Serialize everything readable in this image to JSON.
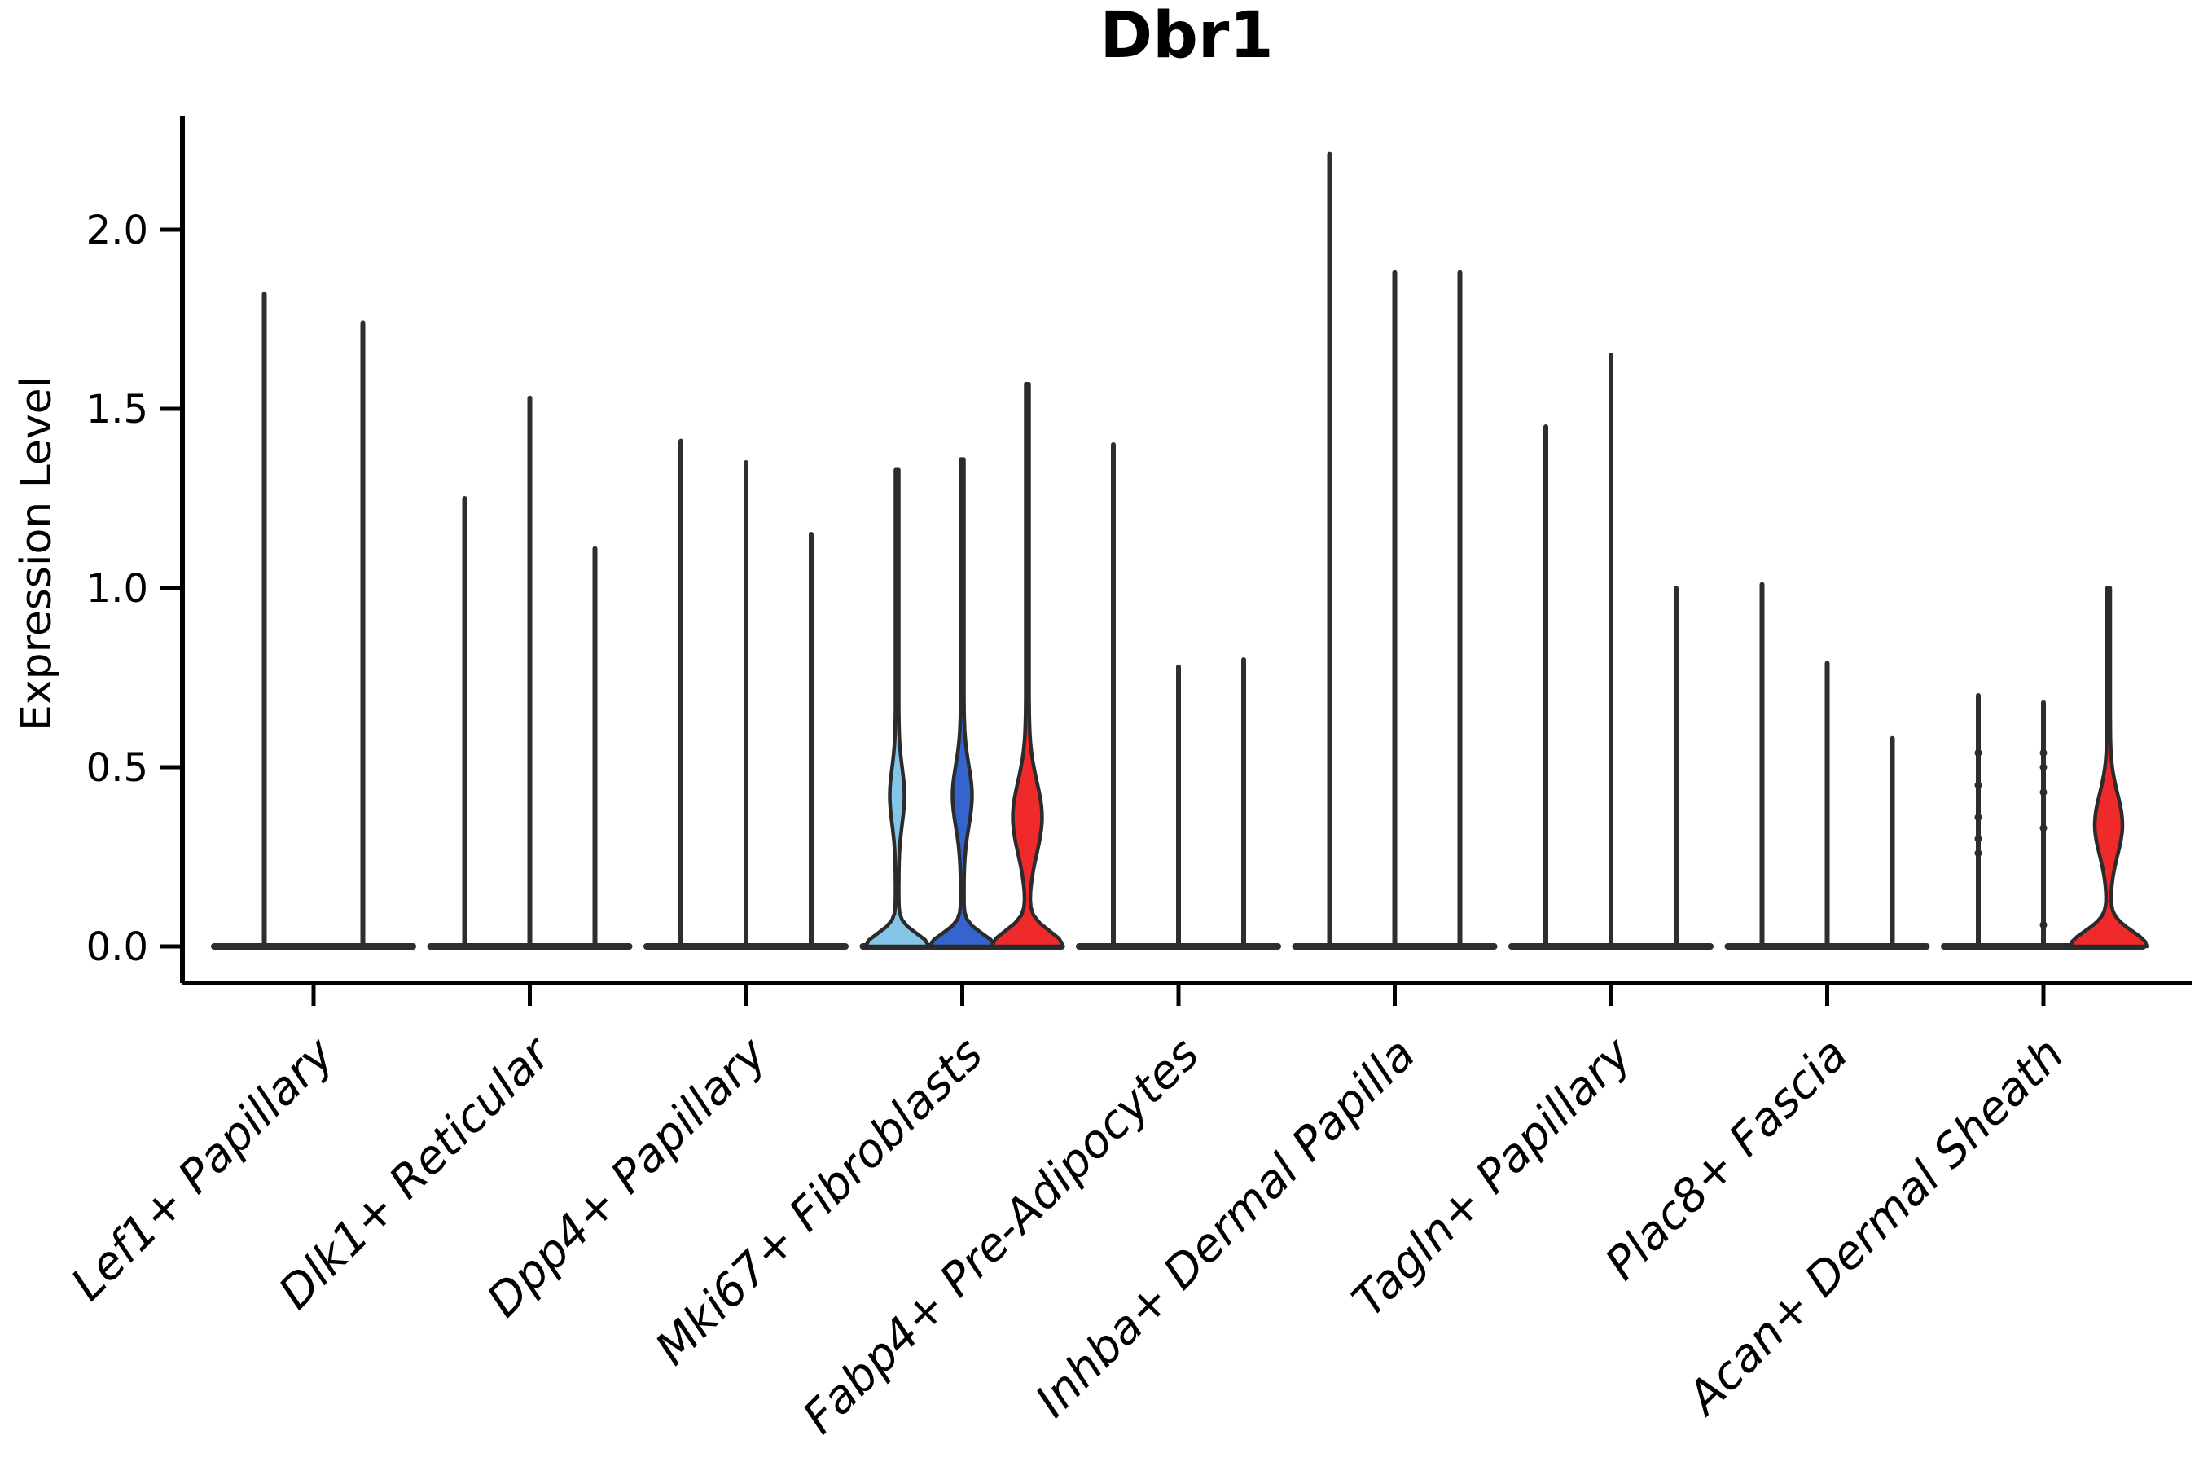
{
  "chart_data": {
    "type": "violin",
    "title": "Dbr1",
    "ylabel": "Expression Level",
    "xlabel": "",
    "ylim": [
      0,
      2.32
    ],
    "yticks": [
      0.0,
      0.5,
      1.0,
      1.5,
      2.0
    ],
    "ytick_labels": [
      "0.0",
      "0.5",
      "1.0",
      "1.5",
      "2.0"
    ],
    "grid": false,
    "legend_position": "none",
    "x_label_rotation_deg": 45,
    "categories": [
      "Lef1+ Papillary",
      "Dlk1+ Reticular",
      "Dpp4+ Papillary",
      "Mki67+ Fibroblasts",
      "Fabp4+ Pre-Adipocytes",
      "Inhba+ Dermal Papilla",
      "Tagln+ Papillary",
      "Plac8+ Fascia",
      "Acan+ Dermal Sheath"
    ],
    "groups": [
      {
        "label": "Lef1+ Papillary",
        "violins": [
          {
            "max_expression": 1.82,
            "fill": "none"
          },
          {
            "max_expression": 1.74,
            "fill": "none"
          }
        ]
      },
      {
        "label": "Dlk1+ Reticular",
        "violins": [
          {
            "max_expression": 1.25,
            "fill": "none"
          },
          {
            "max_expression": 1.53,
            "fill": "none"
          },
          {
            "max_expression": 1.11,
            "fill": "none"
          }
        ]
      },
      {
        "label": "Dpp4+ Papillary",
        "violins": [
          {
            "max_expression": 1.41,
            "fill": "none"
          },
          {
            "max_expression": 1.35,
            "fill": "none"
          },
          {
            "max_expression": 1.15,
            "fill": "none"
          }
        ]
      },
      {
        "label": "Mki67+ Fibroblasts",
        "violins": [
          {
            "max_expression": 1.33,
            "fill": "lightblue",
            "body": {
              "base_hw": 37,
              "base_sigma": 0.05,
              "bulge_hw": 7,
              "bulge_center": 0.42,
              "bulge_sigma": 0.11
            }
          },
          {
            "max_expression": 1.36,
            "fill": "blue",
            "body": {
              "base_hw": 38,
              "base_sigma": 0.05,
              "bulge_hw": 10,
              "bulge_center": 0.42,
              "bulge_sigma": 0.12
            }
          },
          {
            "max_expression": 1.57,
            "fill": "red",
            "body": {
              "base_hw": 42,
              "base_sigma": 0.06,
              "bulge_hw": 16,
              "bulge_center": 0.36,
              "bulge_sigma": 0.14
            }
          }
        ]
      },
      {
        "label": "Fabp4+ Pre-Adipocytes",
        "violins": [
          {
            "max_expression": 1.4,
            "fill": "none"
          },
          {
            "max_expression": 0.78,
            "fill": "none"
          },
          {
            "max_expression": 0.8,
            "fill": "none"
          }
        ]
      },
      {
        "label": "Inhba+ Dermal Papilla",
        "violins": [
          {
            "max_expression": 2.21,
            "fill": "none"
          },
          {
            "max_expression": 1.88,
            "fill": "none"
          },
          {
            "max_expression": 1.88,
            "fill": "none"
          }
        ]
      },
      {
        "label": "Tagln+ Papillary",
        "violins": [
          {
            "max_expression": 1.45,
            "fill": "none"
          },
          {
            "max_expression": 1.65,
            "fill": "none"
          },
          {
            "max_expression": 1.0,
            "fill": "none"
          }
        ]
      },
      {
        "label": "Plac8+ Fascia",
        "violins": [
          {
            "max_expression": 1.01,
            "fill": "none"
          },
          {
            "max_expression": 0.79,
            "fill": "none"
          },
          {
            "max_expression": 0.58,
            "fill": "none"
          }
        ]
      },
      {
        "label": "Acan+ Dermal Sheath",
        "violins": [
          {
            "max_expression": 0.7,
            "fill": "none",
            "dots": [
              0.54,
              0.45,
              0.36,
              0.3,
              0.26
            ]
          },
          {
            "max_expression": 0.68,
            "fill": "none",
            "dots": [
              0.54,
              0.5,
              0.43,
              0.33,
              0.06
            ]
          },
          {
            "max_expression": 1.0,
            "fill": "red",
            "body": {
              "base_hw": 45,
              "base_sigma": 0.06,
              "bulge_hw": 15,
              "bulge_center": 0.34,
              "bulge_sigma": 0.12
            }
          }
        ]
      }
    ],
    "colors": {
      "lightblue": "#85C6E8",
      "blue": "#3564CF",
      "red": "#F02A2A",
      "outline": "#2B2B2B",
      "spike": "#2E2E2E",
      "axis": "#000000"
    }
  }
}
